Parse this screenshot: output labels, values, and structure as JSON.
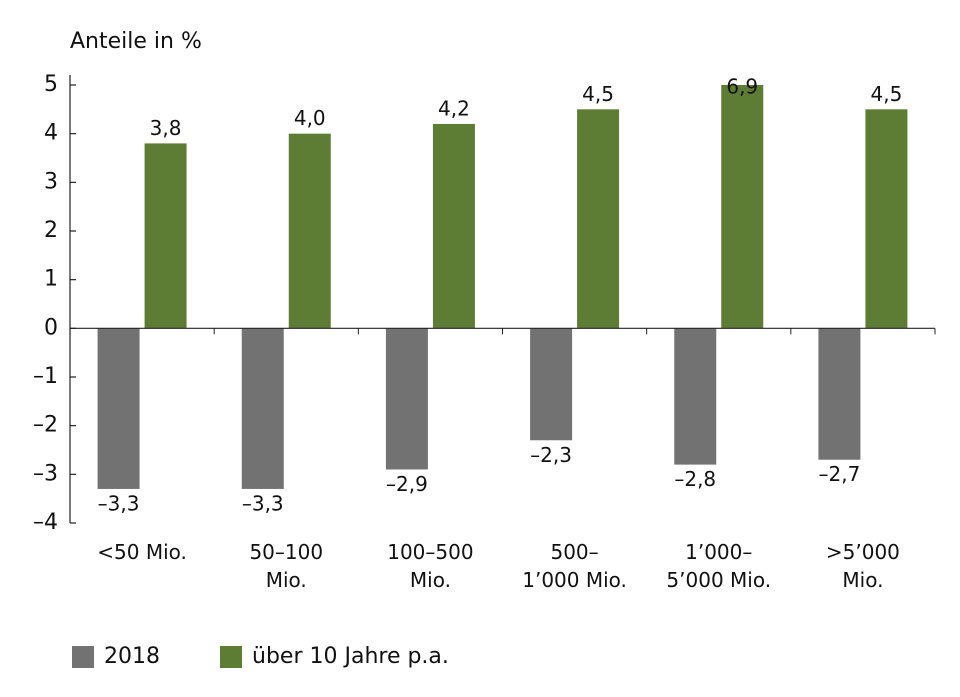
{
  "chart_data": {
    "type": "bar",
    "title": "Anteile in %",
    "categories": [
      "<50 Mio.",
      "50–100\nMio.",
      "100–500\nMio.",
      "500–\n1’000 Mio.",
      "1’000–\n5’000 Mio.",
      ">5’000\nMio."
    ],
    "series": [
      {
        "name": "2018",
        "color": "#727272",
        "values": [
          -3.3,
          -3.3,
          -2.9,
          -2.3,
          -2.8,
          -2.7
        ],
        "value_labels": [
          "–3,3",
          "–3,3",
          "–2,9",
          "–2,3",
          "–2,8",
          "–2,7"
        ]
      },
      {
        "name": "über 10 Jahre p.a.",
        "color": "#5e7d34",
        "values": [
          3.8,
          4.0,
          4.2,
          4.5,
          6.9,
          4.5
        ],
        "value_labels": [
          "3,8",
          "4,0",
          "4,2",
          "4,5",
          "6,9",
          "4,5"
        ]
      }
    ],
    "ylim": [
      -4,
      5
    ],
    "yticks": [
      {
        "value": -4,
        "label": "–4"
      },
      {
        "value": -3,
        "label": "–3"
      },
      {
        "value": -2,
        "label": "–2"
      },
      {
        "value": -1,
        "label": "–1"
      },
      0,
      1,
      2,
      3,
      4,
      5
    ],
    "legend": "bottom-left"
  }
}
